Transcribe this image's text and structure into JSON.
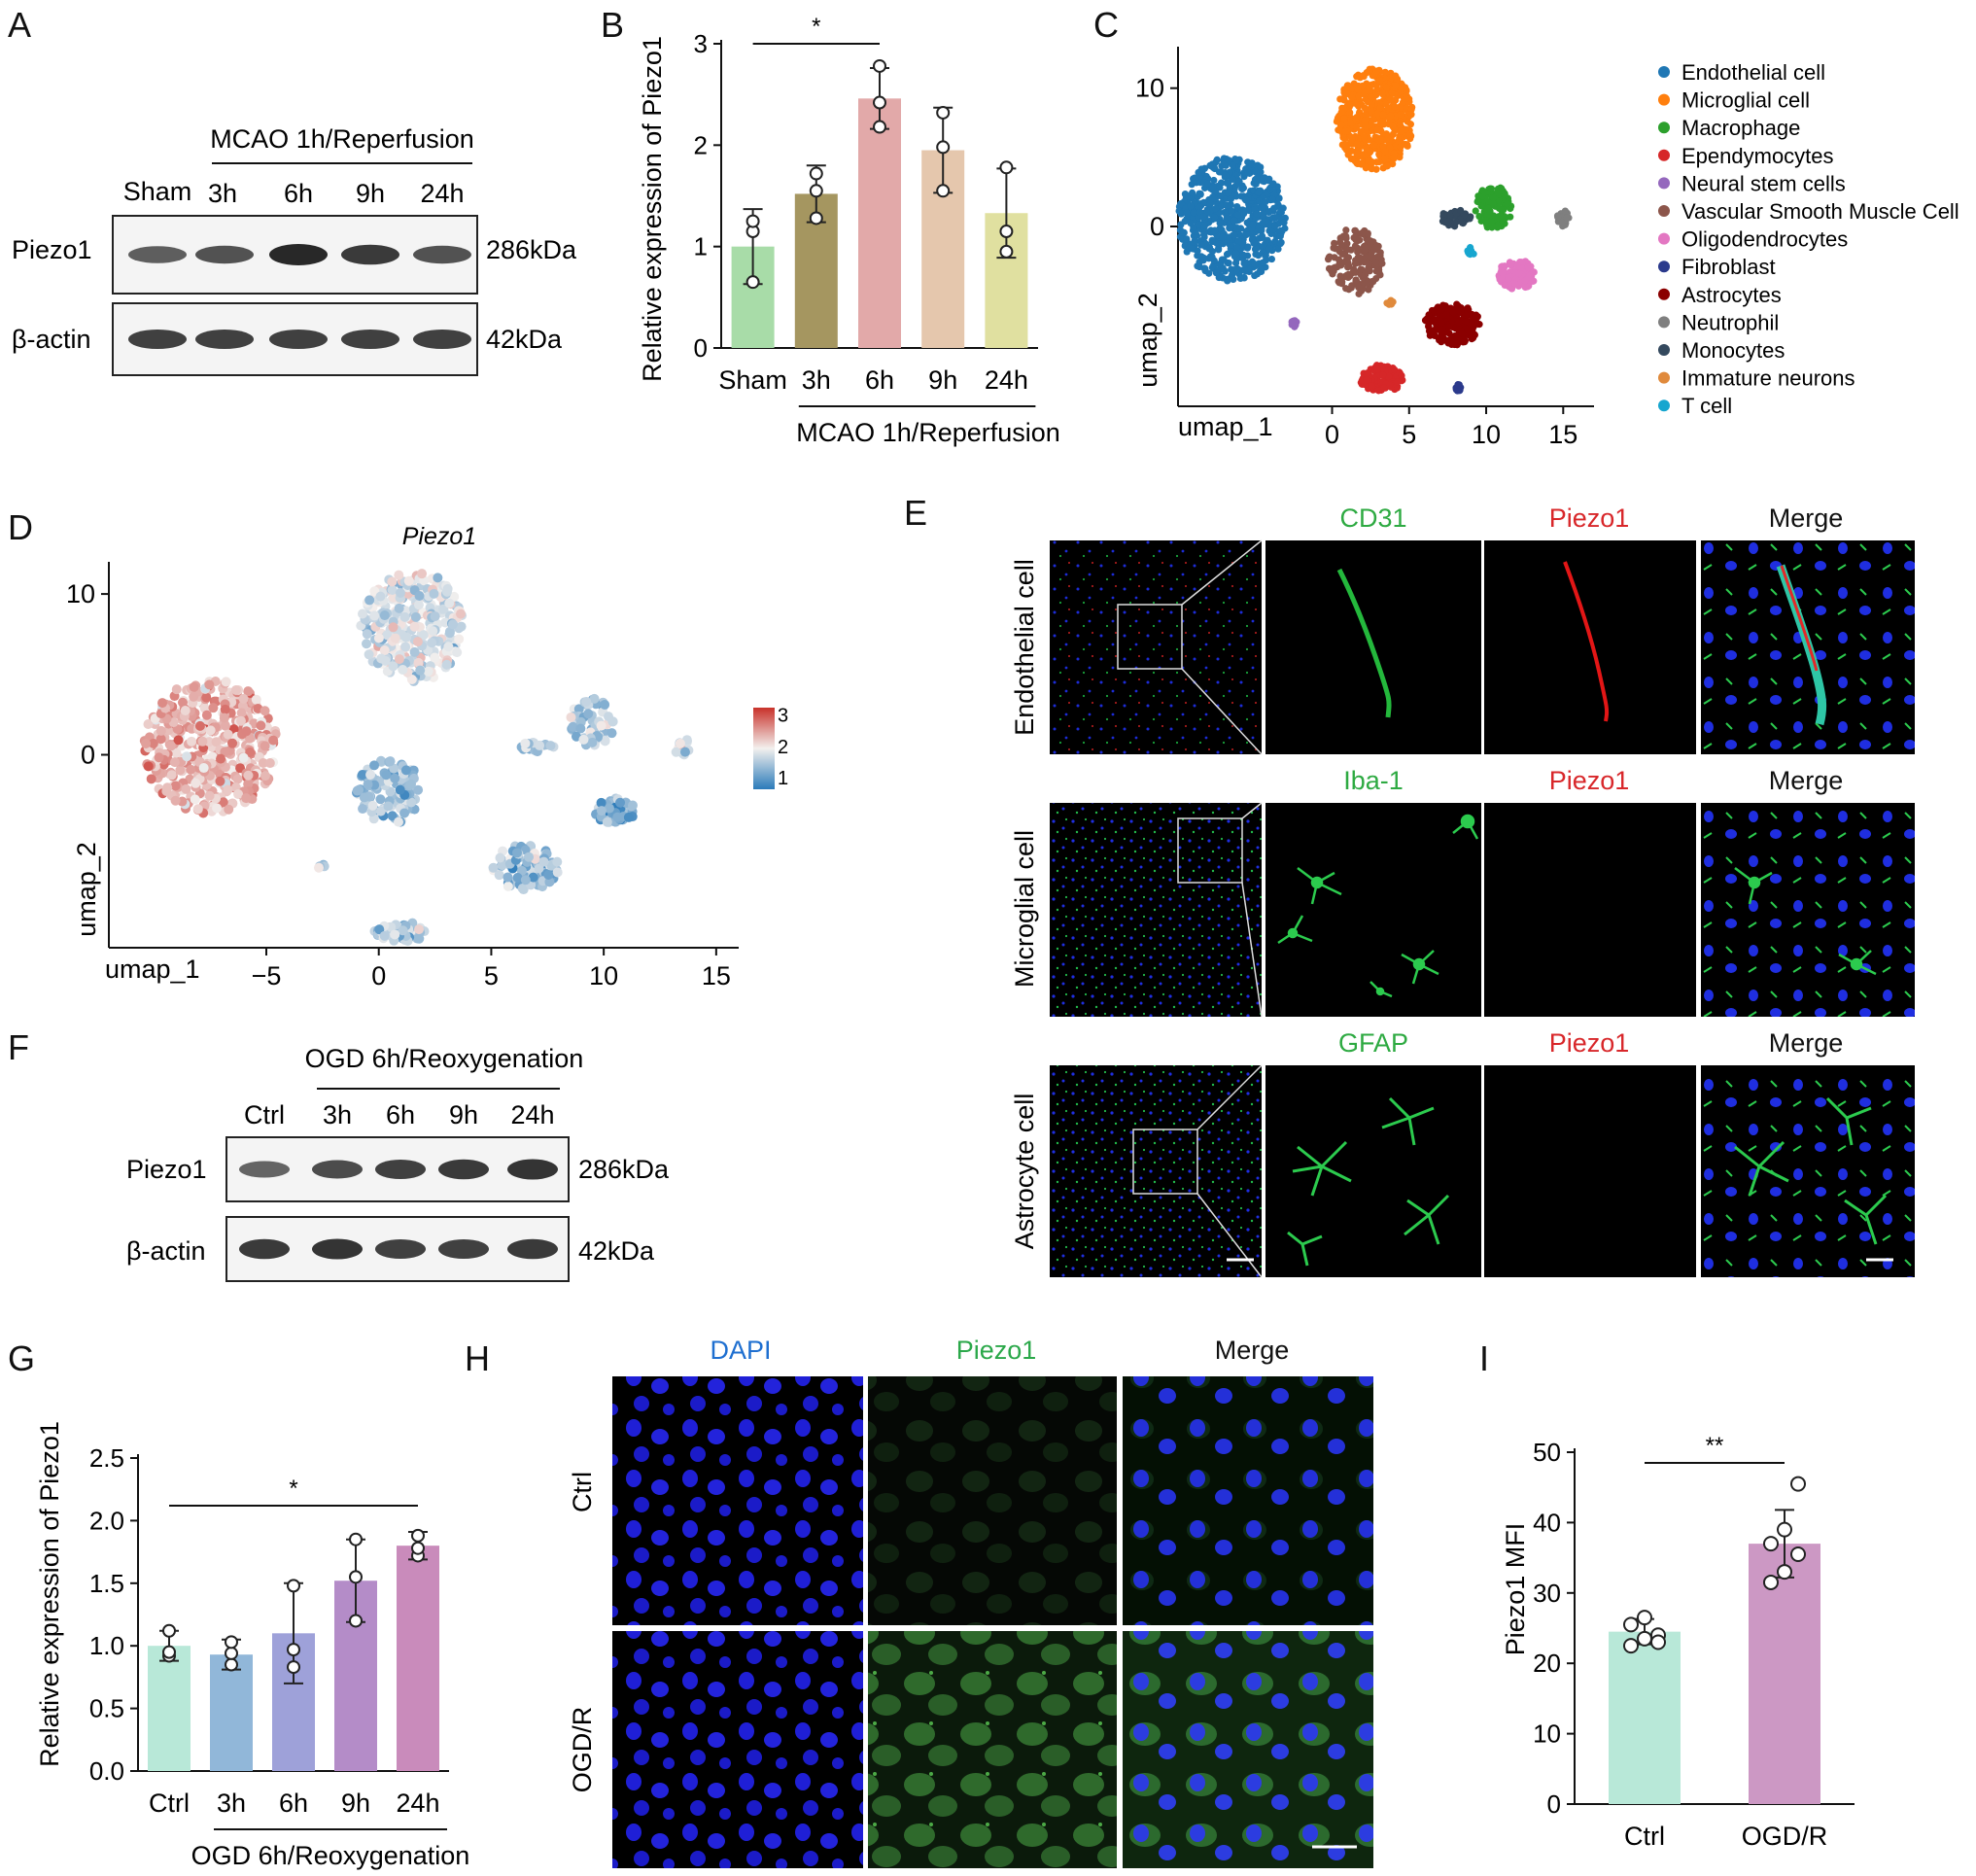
{
  "panels": [
    "A",
    "B",
    "C",
    "D",
    "E",
    "F",
    "G",
    "H",
    "I"
  ],
  "panel_a": {
    "group_label": "MCAO 1h/Reperfusion",
    "lanes": [
      "Sham",
      "3h",
      "6h",
      "9h",
      "24h"
    ],
    "rows": [
      {
        "label": "Piezo1",
        "size": "286kDa",
        "intensity": [
          0.55,
          0.65,
          1.0,
          0.85,
          0.65
        ]
      },
      {
        "label": "β-actin",
        "size": "42kDa",
        "intensity": [
          0.8,
          0.8,
          0.8,
          0.8,
          0.8
        ]
      }
    ]
  },
  "panel_f": {
    "group_label": "OGD 6h/Reoxygenation",
    "lanes": [
      "Ctrl",
      "3h",
      "6h",
      "9h",
      "24h"
    ],
    "rows": [
      {
        "label": "Piezo1",
        "size": "286kDa",
        "intensity": [
          0.5,
          0.7,
          0.8,
          0.85,
          0.9
        ]
      },
      {
        "label": "β-actin",
        "size": "42kDa",
        "intensity": [
          0.85,
          0.9,
          0.8,
          0.8,
          0.85
        ]
      }
    ]
  },
  "panel_c_legend": [
    {
      "name": "Endothelial cell",
      "color": "#1f77b4"
    },
    {
      "name": "Microglial cell",
      "color": "#ff7f0e"
    },
    {
      "name": "Macrophage",
      "color": "#2ca02c"
    },
    {
      "name": "Ependymocytes",
      "color": "#d62728"
    },
    {
      "name": "Neural stem cells",
      "color": "#9467bd"
    },
    {
      "name": "Vascular Smooth Muscle Cell",
      "color": "#8c564b"
    },
    {
      "name": "Oligodendrocytes",
      "color": "#e377c2"
    },
    {
      "name": "Fibroblast",
      "color": "#2b3a8c"
    },
    {
      "name": "Astrocytes",
      "color": "#8b0000"
    },
    {
      "name": "Neutrophil",
      "color": "#7f7f7f"
    },
    {
      "name": "Monocytes",
      "color": "#34495e"
    },
    {
      "name": "Immature neurons",
      "color": "#e08a3c"
    },
    {
      "name": "T cell",
      "color": "#17a6cf"
    }
  ],
  "panel_d_title": "Piezo1",
  "panel_e": {
    "rows": [
      "Endothelial cell",
      "Microglial cell",
      "Astrocyte cell"
    ],
    "markers": [
      "CD31",
      "Iba-1",
      "GFAP"
    ],
    "piezo_label": "Piezo1",
    "merge_label": "Merge"
  },
  "panel_h": {
    "columns": [
      "DAPI",
      "Piezo1",
      "Merge"
    ],
    "rows": [
      "Ctrl",
      "OGD/R"
    ]
  },
  "chart_data": [
    {
      "id": "B",
      "type": "bar",
      "categories": [
        "Sham",
        "3h",
        "6h",
        "9h",
        "24h"
      ],
      "values": [
        1.0,
        1.52,
        2.46,
        1.95,
        1.33
      ],
      "errors": [
        0.37,
        0.28,
        0.3,
        0.42,
        0.44
      ],
      "points": [
        [
          0.65,
          1.15,
          1.25
        ],
        [
          1.28,
          1.55,
          1.72
        ],
        [
          2.18,
          2.42,
          2.78
        ],
        [
          1.55,
          1.98,
          2.32
        ],
        [
          0.95,
          1.15,
          1.78
        ]
      ],
      "colors": [
        "#a8dca8",
        "#a59660",
        "#e2a9a9",
        "#e5c7ad",
        "#e0e0a0"
      ],
      "ylabel": "Relative expression of Piezo1",
      "xgroup_label": "MCAO 1h/Reperfusion",
      "ylim": [
        0,
        3
      ],
      "yticks": [
        0,
        1,
        2,
        3
      ],
      "significance": [
        {
          "from": 0,
          "to": 2,
          "label": "*"
        }
      ]
    },
    {
      "id": "C",
      "type": "scatter",
      "xlabel": "umap_1",
      "ylabel": "umap_2",
      "xticks": [
        0,
        5,
        10,
        15
      ],
      "yticks": [
        0,
        10
      ],
      "xlim": [
        -10,
        17
      ],
      "ylim": [
        -13,
        13
      ],
      "clusters": [
        {
          "name": "Endothelial cell",
          "cx": -6.5,
          "cy": 0.5,
          "rx": 3.5,
          "ry": 4.5,
          "n": 650
        },
        {
          "name": "Microglial cell",
          "cx": 2.8,
          "cy": 7.8,
          "rx": 2.5,
          "ry": 3.7,
          "n": 520
        },
        {
          "name": "Macrophage",
          "cx": 10.5,
          "cy": 1.4,
          "rx": 1.2,
          "ry": 1.6,
          "n": 120
        },
        {
          "name": "Ependymocytes",
          "cx": 3.2,
          "cy": -11.0,
          "rx": 1.4,
          "ry": 1.0,
          "n": 110
        },
        {
          "name": "Neural stem cells",
          "cx": -2.5,
          "cy": -7.0,
          "rx": 0.2,
          "ry": 0.3,
          "n": 12
        },
        {
          "name": "Vascular Smooth Muscle Cell",
          "cx": 1.5,
          "cy": -2.5,
          "rx": 1.8,
          "ry": 2.4,
          "n": 170
        },
        {
          "name": "Oligodendrocytes",
          "cx": 12.0,
          "cy": -3.5,
          "rx": 1.2,
          "ry": 1.1,
          "n": 110
        },
        {
          "name": "Fibroblast",
          "cx": 8.2,
          "cy": -11.6,
          "rx": 0.2,
          "ry": 0.3,
          "n": 10
        },
        {
          "name": "Astrocytes",
          "cx": 7.8,
          "cy": -7.1,
          "rx": 1.8,
          "ry": 1.5,
          "n": 180
        },
        {
          "name": "Neutrophil",
          "cx": 15.0,
          "cy": 0.6,
          "rx": 0.4,
          "ry": 0.6,
          "n": 25
        },
        {
          "name": "Monocytes",
          "cx": 8.0,
          "cy": 0.6,
          "rx": 1.0,
          "ry": 0.6,
          "n": 45
        },
        {
          "name": "Immature neurons",
          "cx": 3.8,
          "cy": -5.5,
          "rx": 0.3,
          "ry": 0.2,
          "n": 8
        },
        {
          "name": "T cell",
          "cx": 9.0,
          "cy": -1.8,
          "rx": 0.3,
          "ry": 0.3,
          "n": 10
        }
      ]
    },
    {
      "id": "D",
      "type": "scatter",
      "title": "Piezo1",
      "xlabel": "umap_1",
      "ylabel": "umap_2",
      "xticks": [
        -5,
        0,
        5,
        10,
        15
      ],
      "yticks": [
        0,
        10
      ],
      "xlim": [
        -12,
        16
      ],
      "ylim": [
        -12,
        12
      ],
      "colorbar": {
        "ticks": [
          1,
          2,
          3
        ],
        "low": "#2b7bba",
        "mid": "#f3f0ee",
        "high": "#c8312a"
      },
      "clusters": [
        {
          "cx": -7.5,
          "cy": 0.5,
          "rx": 3.0,
          "ry": 4.2,
          "n": 420,
          "level": 2.3
        },
        {
          "cx": 1.5,
          "cy": 8.0,
          "rx": 2.3,
          "ry": 3.5,
          "n": 300,
          "level": 1.7
        },
        {
          "cx": 9.5,
          "cy": 2.0,
          "rx": 1.0,
          "ry": 1.5,
          "n": 60,
          "level": 1.5
        },
        {
          "cx": 7.0,
          "cy": 0.5,
          "rx": 0.8,
          "ry": 0.3,
          "n": 25,
          "level": 1.6
        },
        {
          "cx": 0.5,
          "cy": -2.3,
          "rx": 1.5,
          "ry": 2.0,
          "n": 110,
          "level": 1.4
        },
        {
          "cx": 10.5,
          "cy": -3.5,
          "rx": 0.9,
          "ry": 0.8,
          "n": 55,
          "level": 1.2
        },
        {
          "cx": 6.5,
          "cy": -7.0,
          "rx": 1.5,
          "ry": 1.4,
          "n": 90,
          "level": 1.4
        },
        {
          "cx": 1.0,
          "cy": -11.0,
          "rx": 1.2,
          "ry": 0.6,
          "n": 50,
          "level": 1.5
        },
        {
          "cx": 13.5,
          "cy": 0.5,
          "rx": 0.4,
          "ry": 0.5,
          "n": 15,
          "level": 1.8
        },
        {
          "cx": -2.5,
          "cy": -7.0,
          "rx": 0.2,
          "ry": 0.2,
          "n": 6,
          "level": 1.5
        }
      ]
    },
    {
      "id": "G",
      "type": "bar",
      "categories": [
        "Ctrl",
        "3h",
        "6h",
        "9h",
        "24h"
      ],
      "values": [
        1.0,
        0.93,
        1.1,
        1.52,
        1.8
      ],
      "errors": [
        0.12,
        0.12,
        0.4,
        0.33,
        0.11
      ],
      "points": [
        [
          0.92,
          0.95,
          1.12
        ],
        [
          0.85,
          0.94,
          1.03
        ],
        [
          0.83,
          0.97,
          1.48
        ],
        [
          1.2,
          1.55,
          1.85
        ],
        [
          1.72,
          1.78,
          1.88
        ]
      ],
      "colors": [
        "#b8e8d8",
        "#91b7d9",
        "#9ea1d9",
        "#b48cc8",
        "#c98bbb"
      ],
      "ylabel": "Relative expression of Piezo1",
      "xgroup_label": "OGD 6h/Reoxygenation",
      "ylim": [
        0,
        2.5
      ],
      "yticks": [
        0.0,
        0.5,
        1.0,
        1.5,
        2.0,
        2.5
      ],
      "significance": [
        {
          "from": 0,
          "to": 4,
          "label": "*"
        }
      ]
    },
    {
      "id": "I",
      "type": "bar",
      "categories": [
        "Ctrl",
        "OGD/R"
      ],
      "values": [
        24.5,
        37.0
      ],
      "errors": [
        1.8,
        4.8
      ],
      "points": [
        [
          22.5,
          23.5,
          24.0,
          25.5,
          26.5,
          23.0
        ],
        [
          31.5,
          33.0,
          35.5,
          37.0,
          39.0,
          45.5
        ]
      ],
      "colors": [
        "#b8e8d8",
        "#cc98c4"
      ],
      "ylabel": "Piezo1 MFI",
      "ylim": [
        0,
        50
      ],
      "yticks": [
        0,
        10,
        20,
        30,
        40,
        50
      ],
      "significance": [
        {
          "from": 0,
          "to": 1,
          "label": "**"
        }
      ]
    }
  ]
}
